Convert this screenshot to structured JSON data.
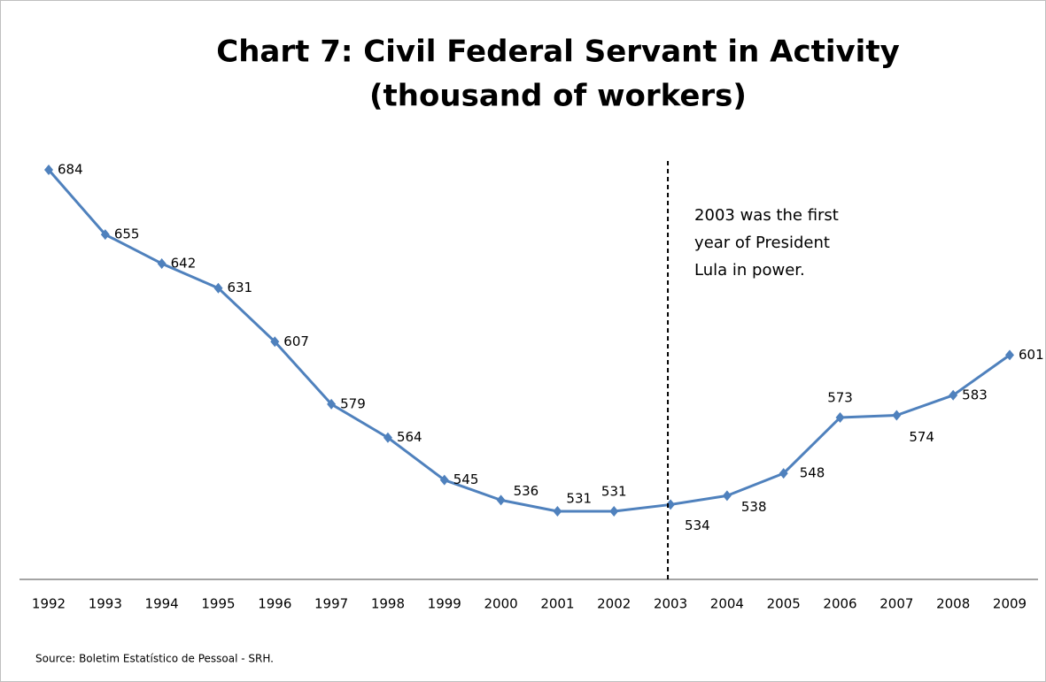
{
  "chart_data": {
    "type": "line",
    "title": "Chart 7: Civil Federal Servant in Activity",
    "subtitle": "(thousand of workers)",
    "categories": [
      "1992",
      "1993",
      "1994",
      "1995",
      "1996",
      "1997",
      "1998",
      "1999",
      "2000",
      "2001",
      "2002",
      "2003",
      "2004",
      "2005",
      "2006",
      "2007",
      "2008",
      "2009"
    ],
    "series": [
      {
        "name": "Civil Federal Servant in Activity",
        "color": "#4f81bd",
        "values": [
          684,
          655,
          642,
          631,
          607,
          579,
          564,
          545,
          536,
          531,
          531,
          534,
          538,
          548,
          573,
          574,
          583,
          601
        ]
      }
    ],
    "annotation": {
      "x": "2003",
      "lines": [
        "2003 was the first",
        "year of President",
        "Lula in power."
      ]
    },
    "source": "Source: Boletim Estatístico de Pessoal - SRH."
  }
}
